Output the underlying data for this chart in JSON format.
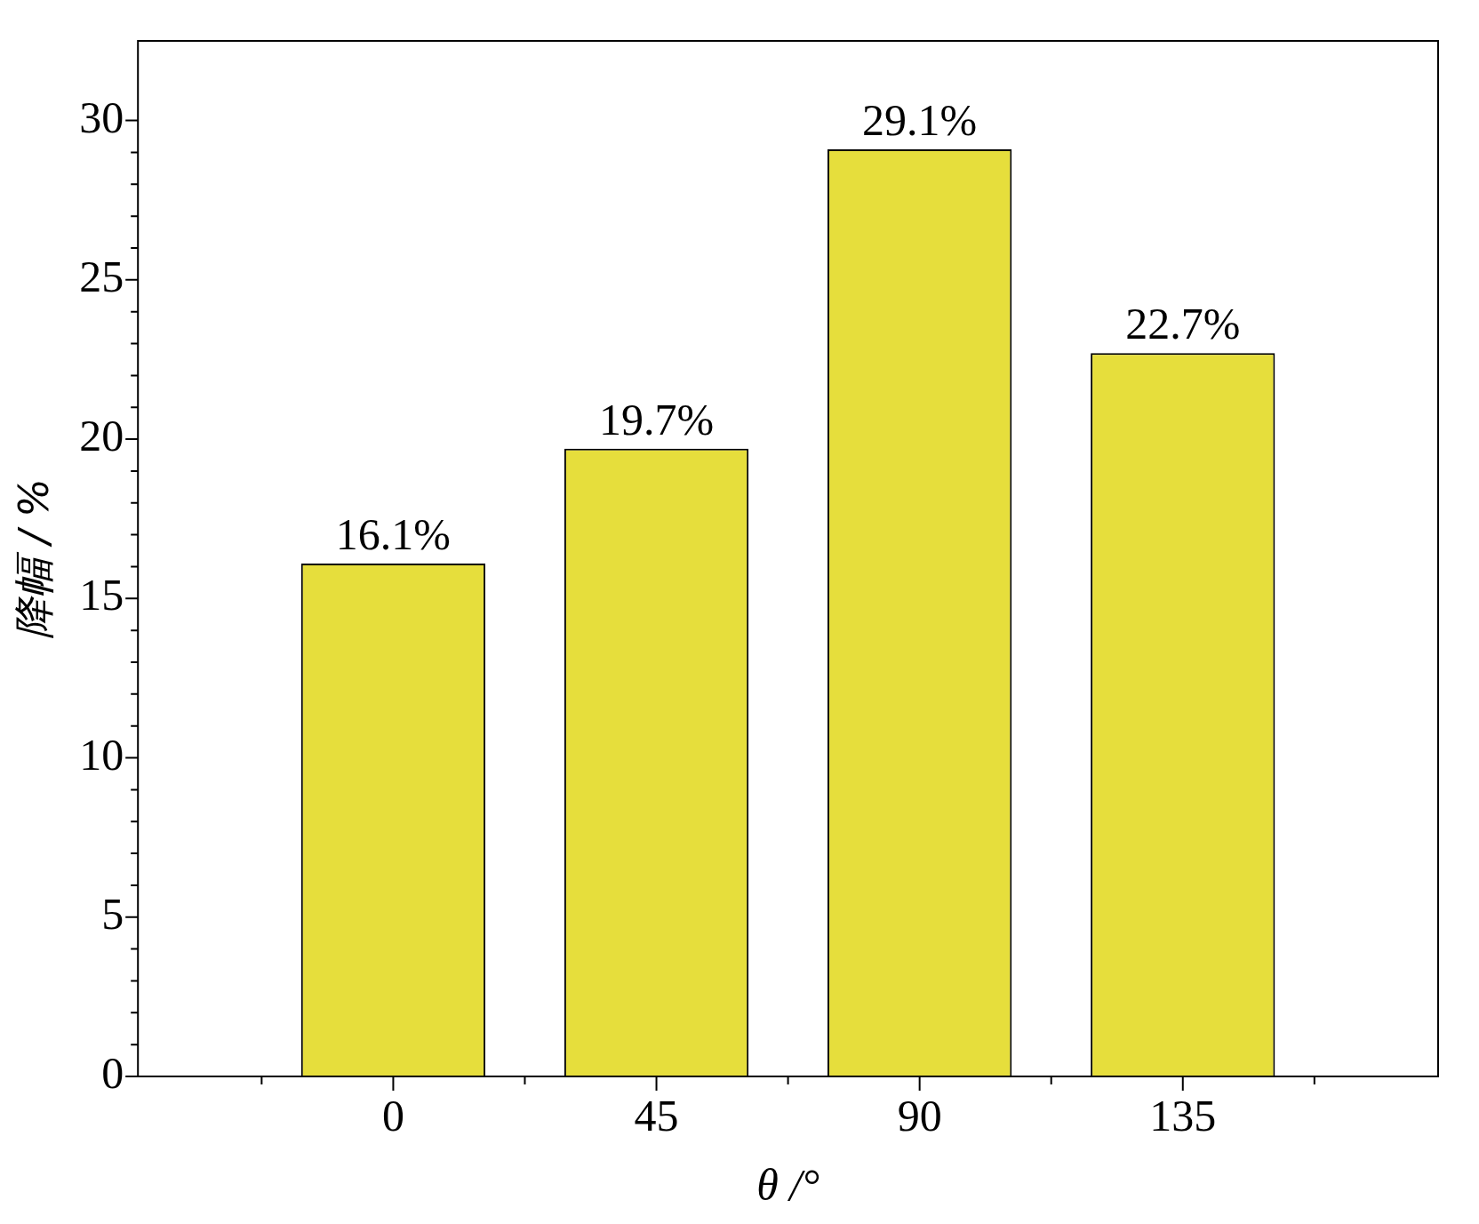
{
  "chart_data": {
    "type": "bar",
    "xlabel": "θ /°",
    "ylabel": "降幅 / %",
    "categories": [
      "0",
      "45",
      "90",
      "135"
    ],
    "values": [
      16.1,
      19.7,
      29.1,
      22.7
    ],
    "value_labels": [
      "16.1%",
      "19.7%",
      "29.1%",
      "22.7%"
    ],
    "color": "#e6de3c",
    "ylim": [
      0,
      32.5
    ],
    "yticks": [
      0,
      {
        "value": 1,
        "label": null
      },
      {
        "value": 2,
        "label": null
      },
      {
        "value": 3,
        "label": null
      },
      {
        "value": 4,
        "label": null
      },
      5,
      {
        "value": 6,
        "label": null
      },
      {
        "value": 7,
        "label": null
      },
      {
        "value": 8,
        "label": null
      },
      {
        "value": 9,
        "label": null
      },
      10,
      {
        "value": 11,
        "label": null
      },
      {
        "value": 12,
        "label": null
      },
      {
        "value": 13,
        "label": null
      },
      {
        "value": 14,
        "label": null
      },
      15,
      {
        "value": 16,
        "label": null
      },
      {
        "value": 17,
        "label": null
      },
      {
        "value": 18,
        "label": null
      },
      {
        "value": 19,
        "label": null
      },
      20,
      {
        "value": 21,
        "label": null
      },
      {
        "value": 22,
        "label": null
      },
      {
        "value": 23,
        "label": null
      },
      {
        "value": 24,
        "label": null
      },
      25,
      {
        "value": 26,
        "label": null
      },
      {
        "value": 27,
        "label": null
      },
      {
        "value": 28,
        "label": null
      },
      {
        "value": 29,
        "label": null
      },
      30
    ],
    "grid": false,
    "legend": false
  }
}
